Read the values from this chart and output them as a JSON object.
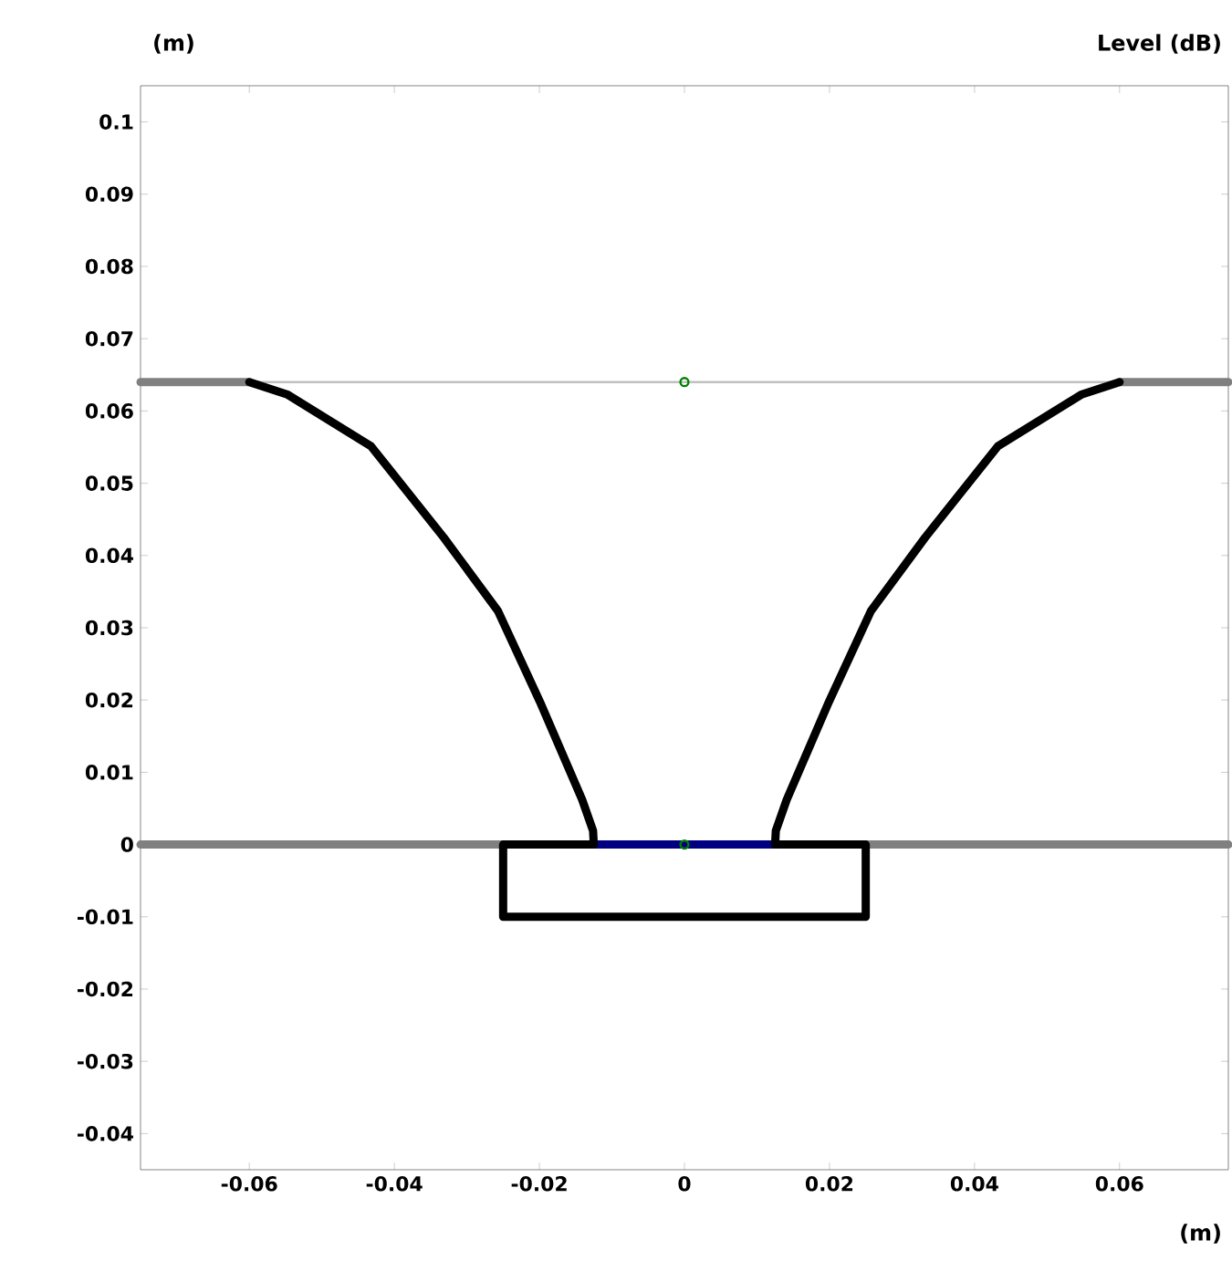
{
  "chart_data": {
    "type": "line",
    "ylabel": "(m)",
    "y2label": "Level  (dB)",
    "xlabel": "(m)",
    "xlim": [
      -0.075,
      0.075
    ],
    "ylim": [
      -0.045,
      0.105
    ],
    "xticks": [
      -0.06,
      -0.04,
      -0.02,
      0,
      0.02,
      0.04,
      0.06
    ],
    "yticks": [
      -0.04,
      -0.03,
      -0.02,
      -0.01,
      0,
      0.01,
      0.02,
      0.03,
      0.04,
      0.05,
      0.06,
      0.07,
      0.08,
      0.09,
      0.1
    ],
    "grid": false,
    "series": [
      {
        "color": "#c0c0c0",
        "x": [
          -0.06,
          0.06
        ],
        "values": [
          0.064,
          0.064
        ]
      },
      {
        "color": "#808080",
        "x": [
          -0.075,
          -0.06
        ],
        "values": [
          0.064,
          0.064
        ]
      },
      {
        "color": "#808080",
        "x": [
          0.06,
          0.075
        ],
        "values": [
          0.064,
          0.064
        ]
      },
      {
        "color": "#808080",
        "x": [
          -0.075,
          -0.025
        ],
        "values": [
          0,
          0
        ]
      },
      {
        "color": "#808080",
        "x": [
          0.025,
          0.075
        ],
        "values": [
          0,
          0
        ]
      },
      {
        "color": "#000080",
        "x": [
          -0.0125,
          0.0125
        ],
        "values": [
          0,
          0
        ]
      },
      {
        "color": "#000000",
        "x": [
          -0.06,
          -0.0548,
          -0.0432,
          -0.0332,
          -0.0257,
          -0.0199,
          -0.0141,
          -0.0126,
          -0.0125
        ],
        "values": [
          0.064,
          0.0623,
          0.0551,
          0.0425,
          0.0323,
          0.0197,
          0.0062,
          0.0019,
          0
        ]
      },
      {
        "color": "#000000",
        "x": [
          0.06,
          0.0548,
          0.0432,
          0.0332,
          0.0257,
          0.0199,
          0.0141,
          0.0126,
          0.0125
        ],
        "values": [
          0.064,
          0.0623,
          0.0551,
          0.0425,
          0.0323,
          0.0197,
          0.0062,
          0.0019,
          0
        ]
      },
      {
        "color": "#000000",
        "x": [
          -0.0125,
          -0.025,
          -0.025,
          0.025,
          0.025,
          0.0125
        ],
        "values": [
          0,
          0,
          -0.01,
          -0.01,
          0,
          0
        ]
      },
      {
        "type": "scatter",
        "marker": "circle",
        "color": "#008000",
        "x": [
          0,
          0
        ],
        "values": [
          0.064,
          0
        ]
      }
    ]
  }
}
